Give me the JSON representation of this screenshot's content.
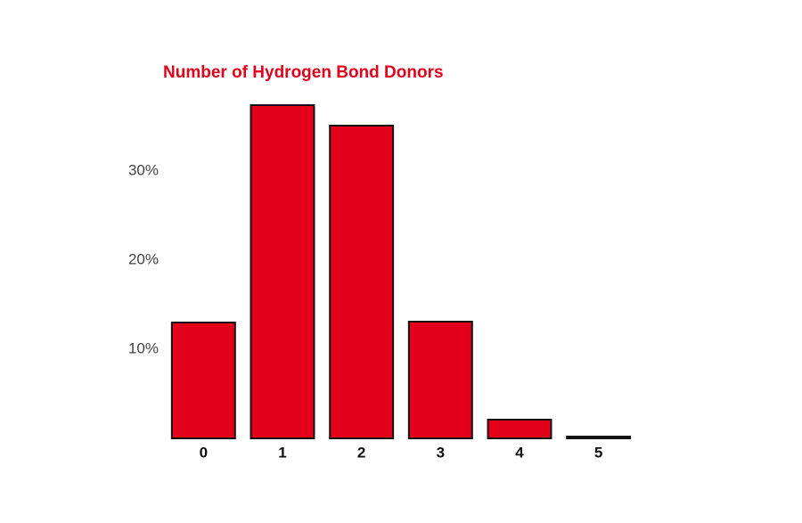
{
  "chart_data": {
    "type": "bar",
    "title": "Number of Hydrogen Bond Donors",
    "categories": [
      "0",
      "1",
      "2",
      "3",
      "4",
      "5"
    ],
    "values": [
      13.0,
      37.4,
      35.1,
      13.1,
      2.1,
      0.2
    ],
    "color": "#e2001a",
    "title_color": "#e2001a",
    "ylim": [
      0,
      38
    ],
    "yticks": [
      {
        "value": 10,
        "label": "10%"
      },
      {
        "value": 20,
        "label": "20%"
      },
      {
        "value": 30,
        "label": "30%"
      }
    ],
    "grid": false
  }
}
